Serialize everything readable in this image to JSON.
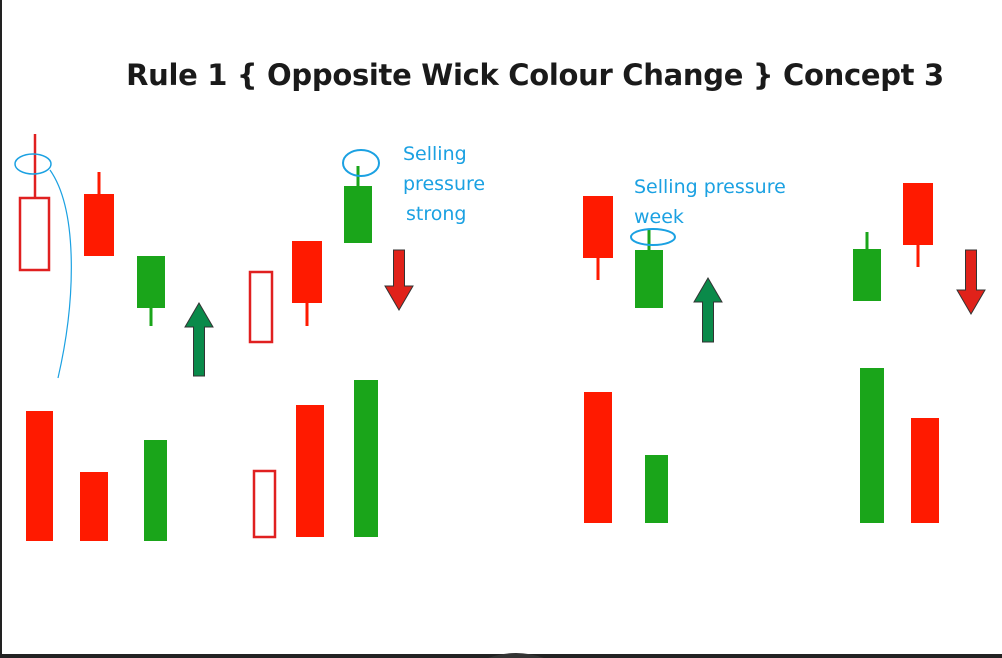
{
  "title": "Rule 1 { Opposite Wick Colour Change } Concept 3",
  "notes": {
    "strong": [
      "Selling",
      "pressure",
      "strong"
    ],
    "weak": [
      "Selling pressure",
      "week"
    ]
  },
  "colors": {
    "bearish": "#ff1a00",
    "bullish": "#1aa51a",
    "arrow_up": "#0a8a4a",
    "arrow_down": "#e0221a",
    "highlight_box": "#e02020",
    "annotation": "#1ba1e2",
    "title": "#1a1a1a"
  },
  "groups": [
    {
      "candles": [
        {
          "color": "bearish",
          "wick": "both"
        },
        {
          "color": "bullish",
          "wick": "bottom"
        }
      ],
      "arrow": "up",
      "volume": [
        "bearish",
        "bearish",
        "bullish"
      ]
    },
    {
      "candles": [
        {
          "color": "bearish",
          "wick": "bottom"
        },
        {
          "color": "bullish",
          "wick": "top"
        }
      ],
      "arrow": "down",
      "volume": [
        "bearish",
        "bullish"
      ]
    },
    {
      "candles": [
        {
          "color": "bearish",
          "wick": "bottom"
        },
        {
          "color": "bullish",
          "wick": "top"
        }
      ],
      "arrow": "up",
      "volume": [
        "bearish",
        "bullish"
      ]
    },
    {
      "candles": [
        {
          "color": "bullish",
          "wick": "top"
        },
        {
          "color": "bearish",
          "wick": "bottom"
        }
      ],
      "arrow": "down",
      "volume": [
        "bullish",
        "bearish"
      ]
    }
  ]
}
